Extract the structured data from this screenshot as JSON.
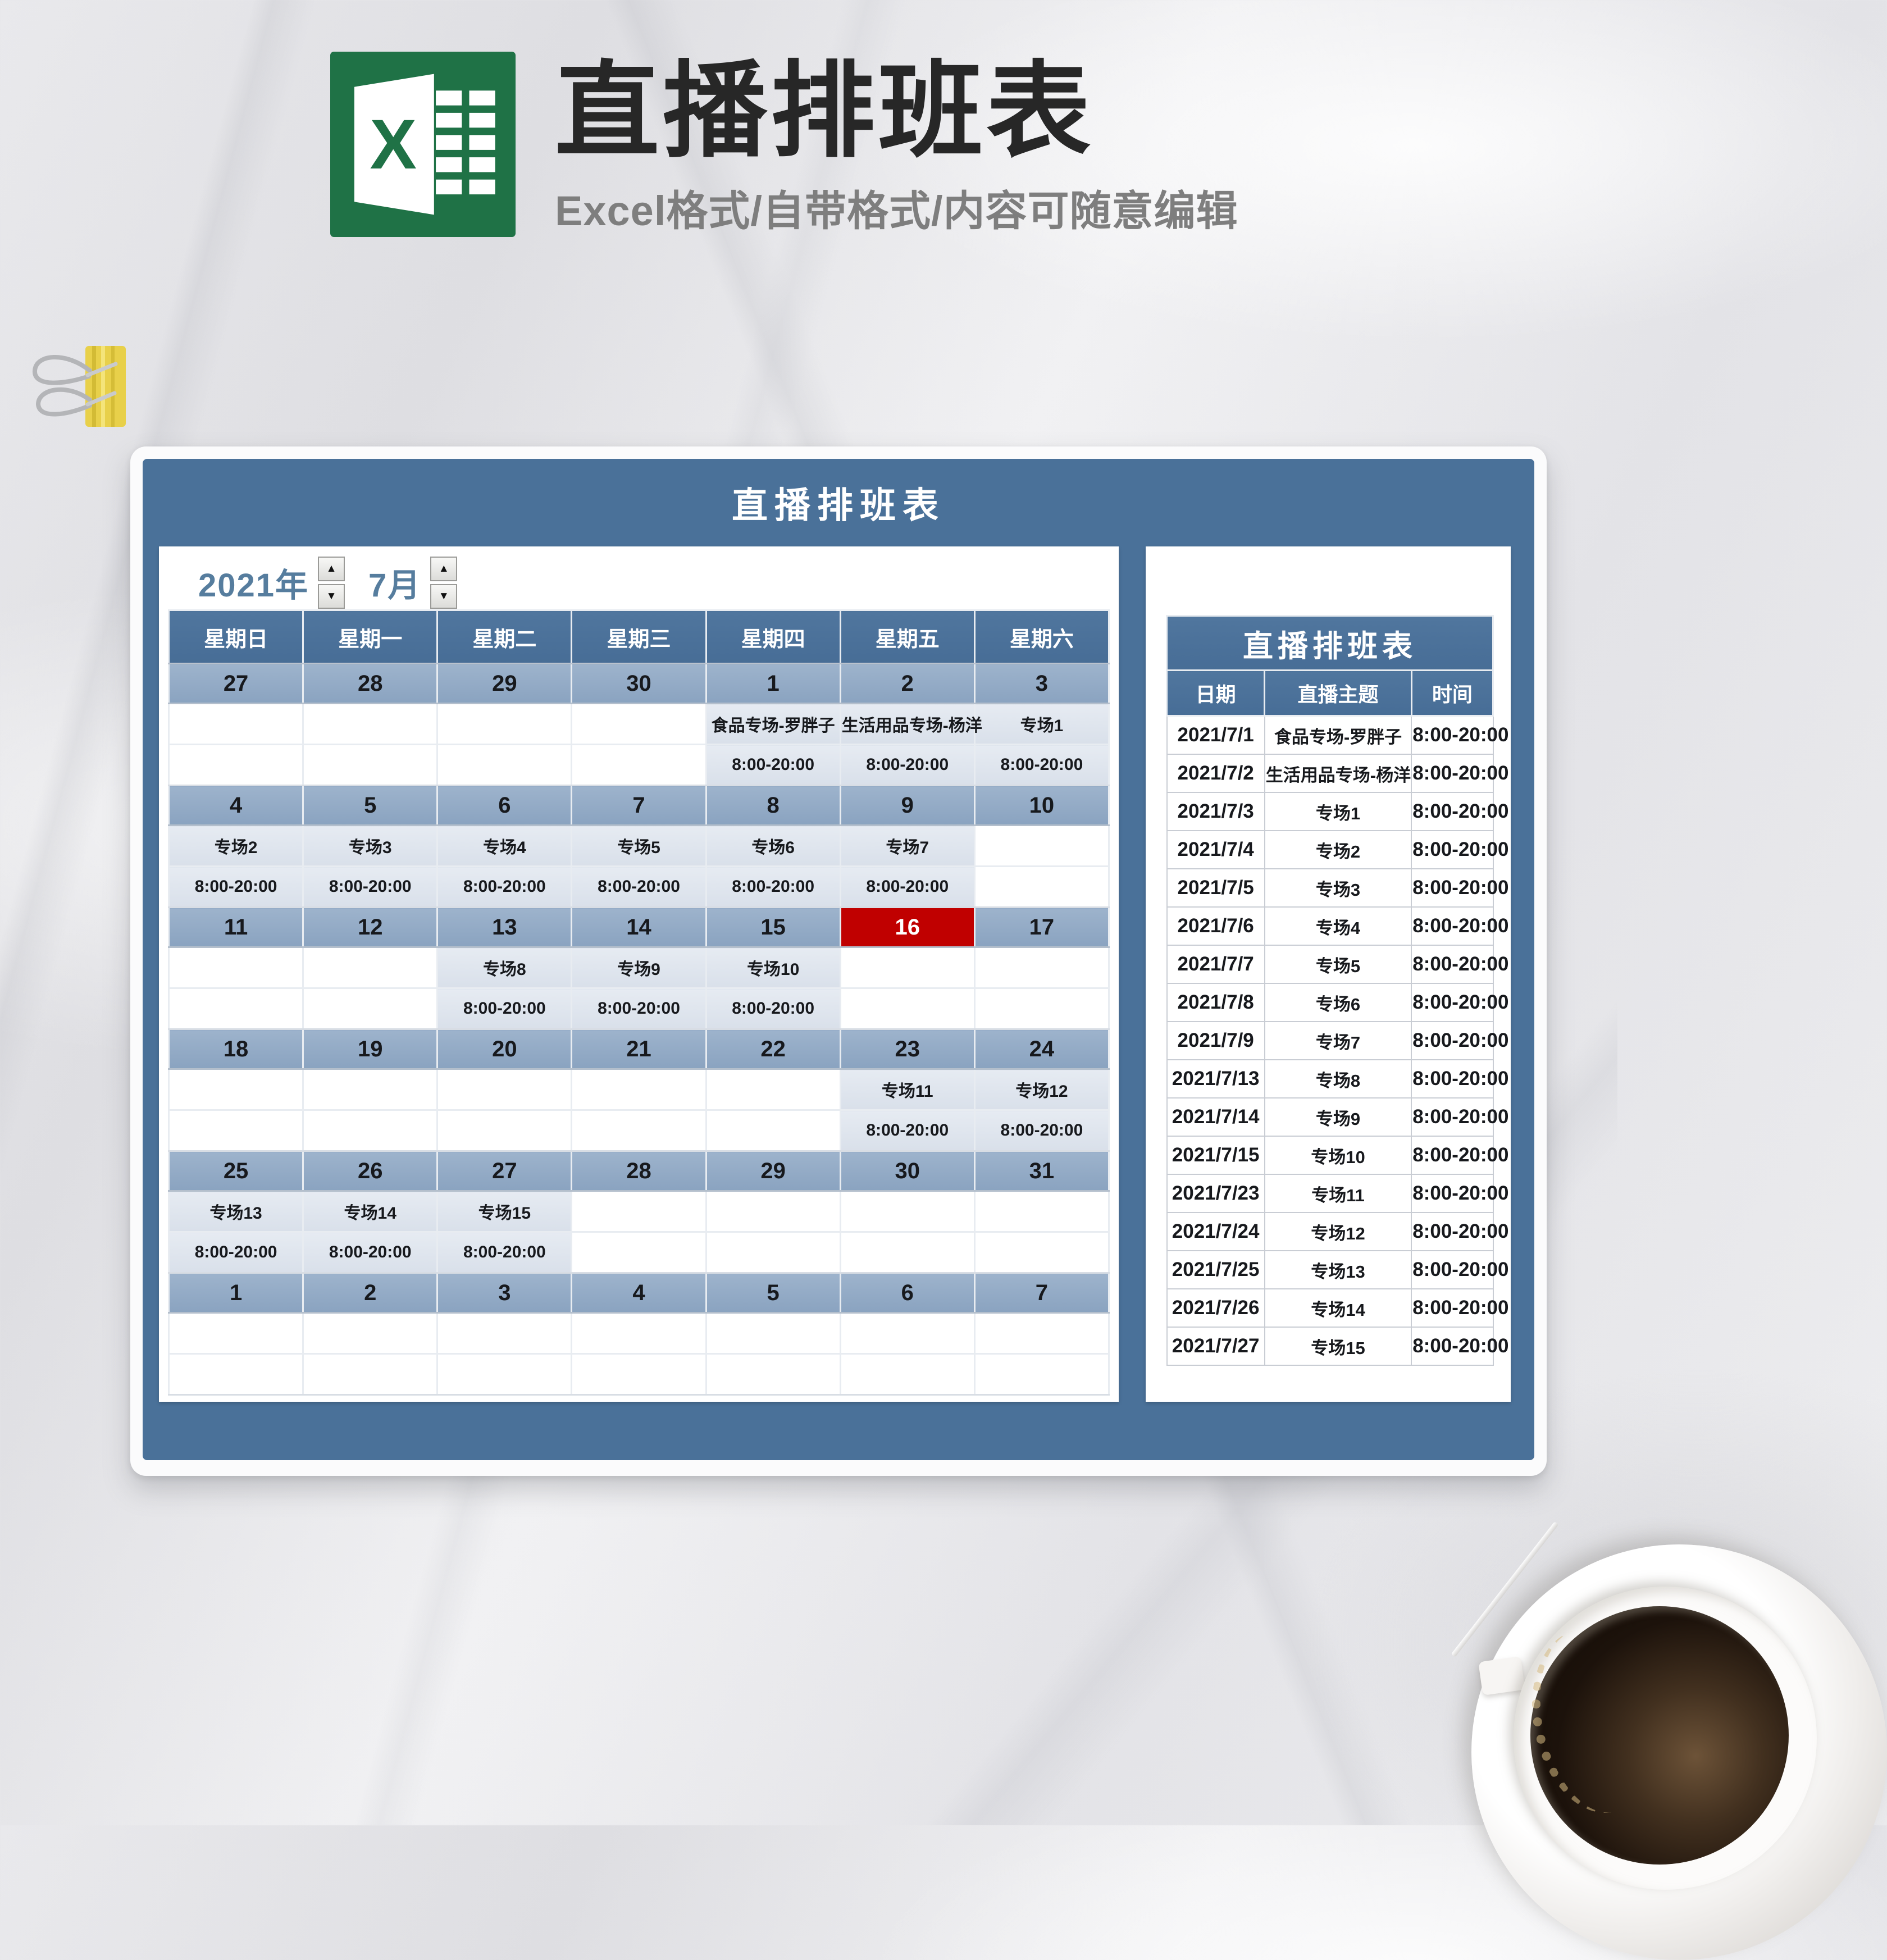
{
  "header": {
    "title": "直播排班表",
    "subtitle": "Excel格式/自带格式/内容可随意编辑",
    "excel_letter": "X"
  },
  "panel": {
    "title": "直播排班表",
    "year_label": "2021年",
    "month_label": "7月"
  },
  "icons": {
    "spinner_up": "▲",
    "spinner_down": "▼"
  },
  "calendar": {
    "weekdays": [
      "星期日",
      "星期一",
      "星期二",
      "星期三",
      "星期四",
      "星期五",
      "星期六"
    ],
    "weeks": [
      {
        "dates": [
          "27",
          "28",
          "29",
          "30",
          "1",
          "2",
          "3"
        ],
        "events": [
          "",
          "",
          "",
          "",
          "食品专场-罗胖子",
          "生活用品专场-杨洋",
          "专场1"
        ],
        "times": [
          "",
          "",
          "",
          "",
          "8:00-20:00",
          "8:00-20:00",
          "8:00-20:00"
        ]
      },
      {
        "dates": [
          "4",
          "5",
          "6",
          "7",
          "8",
          "9",
          "10"
        ],
        "events": [
          "专场2",
          "专场3",
          "专场4",
          "专场5",
          "专场6",
          "专场7",
          ""
        ],
        "times": [
          "8:00-20:00",
          "8:00-20:00",
          "8:00-20:00",
          "8:00-20:00",
          "8:00-20:00",
          "8:00-20:00",
          ""
        ]
      },
      {
        "dates": [
          "11",
          "12",
          "13",
          "14",
          "15",
          "16",
          "17"
        ],
        "events": [
          "",
          "",
          "专场8",
          "专场9",
          "专场10",
          "",
          ""
        ],
        "times": [
          "",
          "",
          "8:00-20:00",
          "8:00-20:00",
          "8:00-20:00",
          "",
          ""
        ]
      },
      {
        "dates": [
          "18",
          "19",
          "20",
          "21",
          "22",
          "23",
          "24"
        ],
        "events": [
          "",
          "",
          "",
          "",
          "",
          "专场11",
          "专场12"
        ],
        "times": [
          "",
          "",
          "",
          "",
          "",
          "8:00-20:00",
          "8:00-20:00"
        ]
      },
      {
        "dates": [
          "25",
          "26",
          "27",
          "28",
          "29",
          "30",
          "31"
        ],
        "events": [
          "专场13",
          "专场14",
          "专场15",
          "",
          "",
          "",
          ""
        ],
        "times": [
          "8:00-20:00",
          "8:00-20:00",
          "8:00-20:00",
          "",
          "",
          "",
          ""
        ]
      },
      {
        "dates": [
          "1",
          "2",
          "3",
          "4",
          "5",
          "6",
          "7"
        ],
        "events": [
          "",
          "",
          "",
          "",
          "",
          "",
          ""
        ],
        "times": [
          "",
          "",
          "",
          "",
          "",
          "",
          ""
        ]
      }
    ],
    "highlighted_date": {
      "week_index": 2,
      "day_index": 5,
      "value": "16"
    }
  },
  "side_table": {
    "title": "直播排班表",
    "columns": [
      "日期",
      "直播主题",
      "时间"
    ],
    "rows": [
      [
        "2021/7/1",
        "食品专场-罗胖子",
        "8:00-20:00"
      ],
      [
        "2021/7/2",
        "生活用品专场-杨洋",
        "8:00-20:00"
      ],
      [
        "2021/7/3",
        "专场1",
        "8:00-20:00"
      ],
      [
        "2021/7/4",
        "专场2",
        "8:00-20:00"
      ],
      [
        "2021/7/5",
        "专场3",
        "8:00-20:00"
      ],
      [
        "2021/7/6",
        "专场4",
        "8:00-20:00"
      ],
      [
        "2021/7/7",
        "专场5",
        "8:00-20:00"
      ],
      [
        "2021/7/8",
        "专场6",
        "8:00-20:00"
      ],
      [
        "2021/7/9",
        "专场7",
        "8:00-20:00"
      ],
      [
        "2021/7/13",
        "专场8",
        "8:00-20:00"
      ],
      [
        "2021/7/14",
        "专场9",
        "8:00-20:00"
      ],
      [
        "2021/7/15",
        "专场10",
        "8:00-20:00"
      ],
      [
        "2021/7/23",
        "专场11",
        "8:00-20:00"
      ],
      [
        "2021/7/24",
        "专场12",
        "8:00-20:00"
      ],
      [
        "2021/7/25",
        "专场13",
        "8:00-20:00"
      ],
      [
        "2021/7/26",
        "专场14",
        "8:00-20:00"
      ],
      [
        "2021/7/27",
        "专场15",
        "8:00-20:00"
      ]
    ]
  },
  "colors": {
    "accent": "#4a7199",
    "date_blue": "#8aa3c0",
    "event_bg": "#d9e0ea",
    "highlight_red": "#c00000",
    "excel_green": "#1f7246",
    "ym_text": "#567d9e"
  }
}
